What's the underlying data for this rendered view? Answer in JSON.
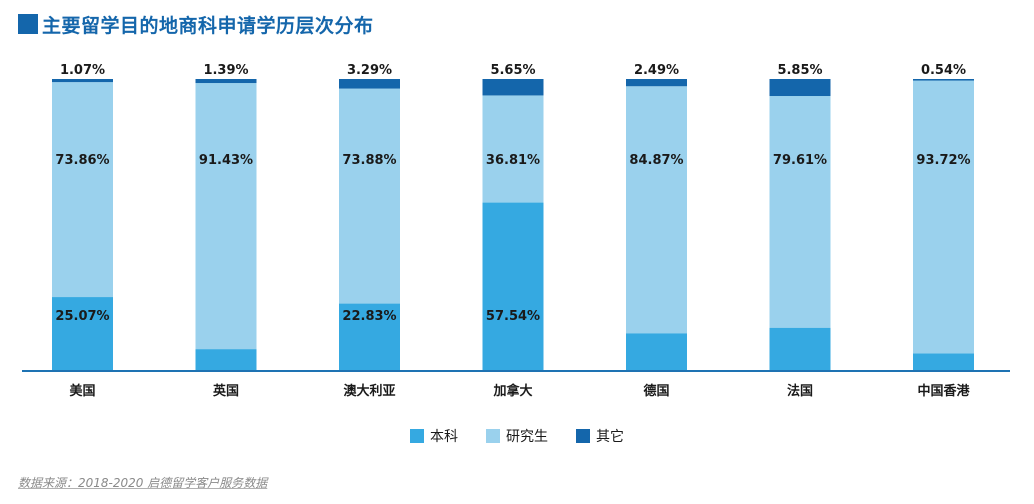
{
  "title": "主要留学目的地商科申请学历层次分布",
  "source": "数据来源：2018-2020 启德留学客户服务数据",
  "colors": {
    "benke": "#35a9e1",
    "yanjiusheng": "#9ad1ed",
    "qita": "#1466ab",
    "title": "#1466ab",
    "axis": "#1e73b3"
  },
  "legend": [
    {
      "name": "本科",
      "color": "#35a9e1"
    },
    {
      "name": "研究生",
      "color": "#9ad1ed"
    },
    {
      "name": "其它",
      "color": "#1466ab"
    }
  ],
  "chart_data": {
    "type": "bar",
    "stacked": true,
    "categories": [
      "美国",
      "英国",
      "澳大利亚",
      "加拿大",
      "德国",
      "法国",
      "中国香港"
    ],
    "series": [
      {
        "name": "本科",
        "values": [
          25.07,
          7.18,
          22.83,
          57.54,
          12.64,
          14.54,
          5.74
        ],
        "labels": [
          "25.07%",
          "7.18%",
          "22.83%",
          "57.54%",
          "12.64%",
          "14.54%",
          "5.74%"
        ]
      },
      {
        "name": "研究生",
        "values": [
          73.86,
          91.43,
          73.88,
          36.81,
          84.87,
          79.61,
          93.72
        ],
        "labels": [
          "73.86%",
          "91.43%",
          "73.88%",
          "36.81%",
          "84.87%",
          "79.61%",
          "93.72%"
        ]
      },
      {
        "name": "其它",
        "values": [
          1.07,
          1.39,
          3.29,
          5.65,
          2.49,
          5.85,
          0.54
        ],
        "labels": [
          "1.07%",
          "1.39%",
          "3.29%",
          "5.65%",
          "2.49%",
          "5.85%",
          "0.54%"
        ]
      }
    ],
    "ylim": [
      0,
      100
    ]
  }
}
